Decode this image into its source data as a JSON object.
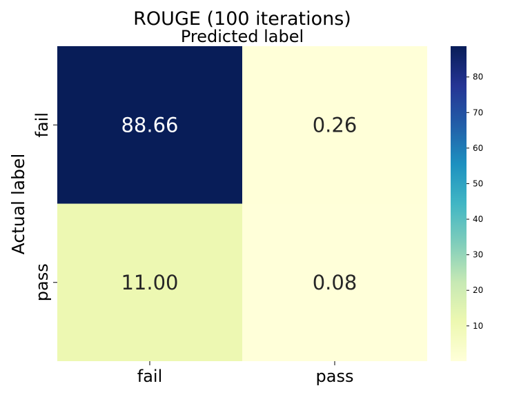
{
  "chart_data": {
    "type": "heatmap",
    "title": "ROUGE (100 iterations)",
    "subtitle": "Predicted label",
    "xlabel": "",
    "ylabel": "Actual label",
    "x_categories": [
      "fail",
      "pass"
    ],
    "y_categories": [
      "fail",
      "pass"
    ],
    "values": [
      [
        88.66,
        0.26
      ],
      [
        11.0,
        0.08
      ]
    ],
    "value_labels": [
      [
        "88.66",
        "0.26"
      ],
      [
        "11.00",
        "0.08"
      ]
    ],
    "colormap": "YlGnBu",
    "colorbar": {
      "range": [
        0.08,
        88.66
      ],
      "ticks": [
        10,
        20,
        30,
        40,
        50,
        60,
        70,
        80
      ],
      "tick_labels": [
        "10",
        "20",
        "30",
        "40",
        "50",
        "60",
        "70",
        "80"
      ]
    },
    "colors": {
      "dark_text": "#262626",
      "light_text": "#ffffff",
      "palette": [
        "#ffffd9",
        "#edf8b1",
        "#c7e9b4",
        "#7fcdbb",
        "#41b6c4",
        "#1d91c0",
        "#225ea8",
        "#253494",
        "#081d58"
      ]
    }
  }
}
